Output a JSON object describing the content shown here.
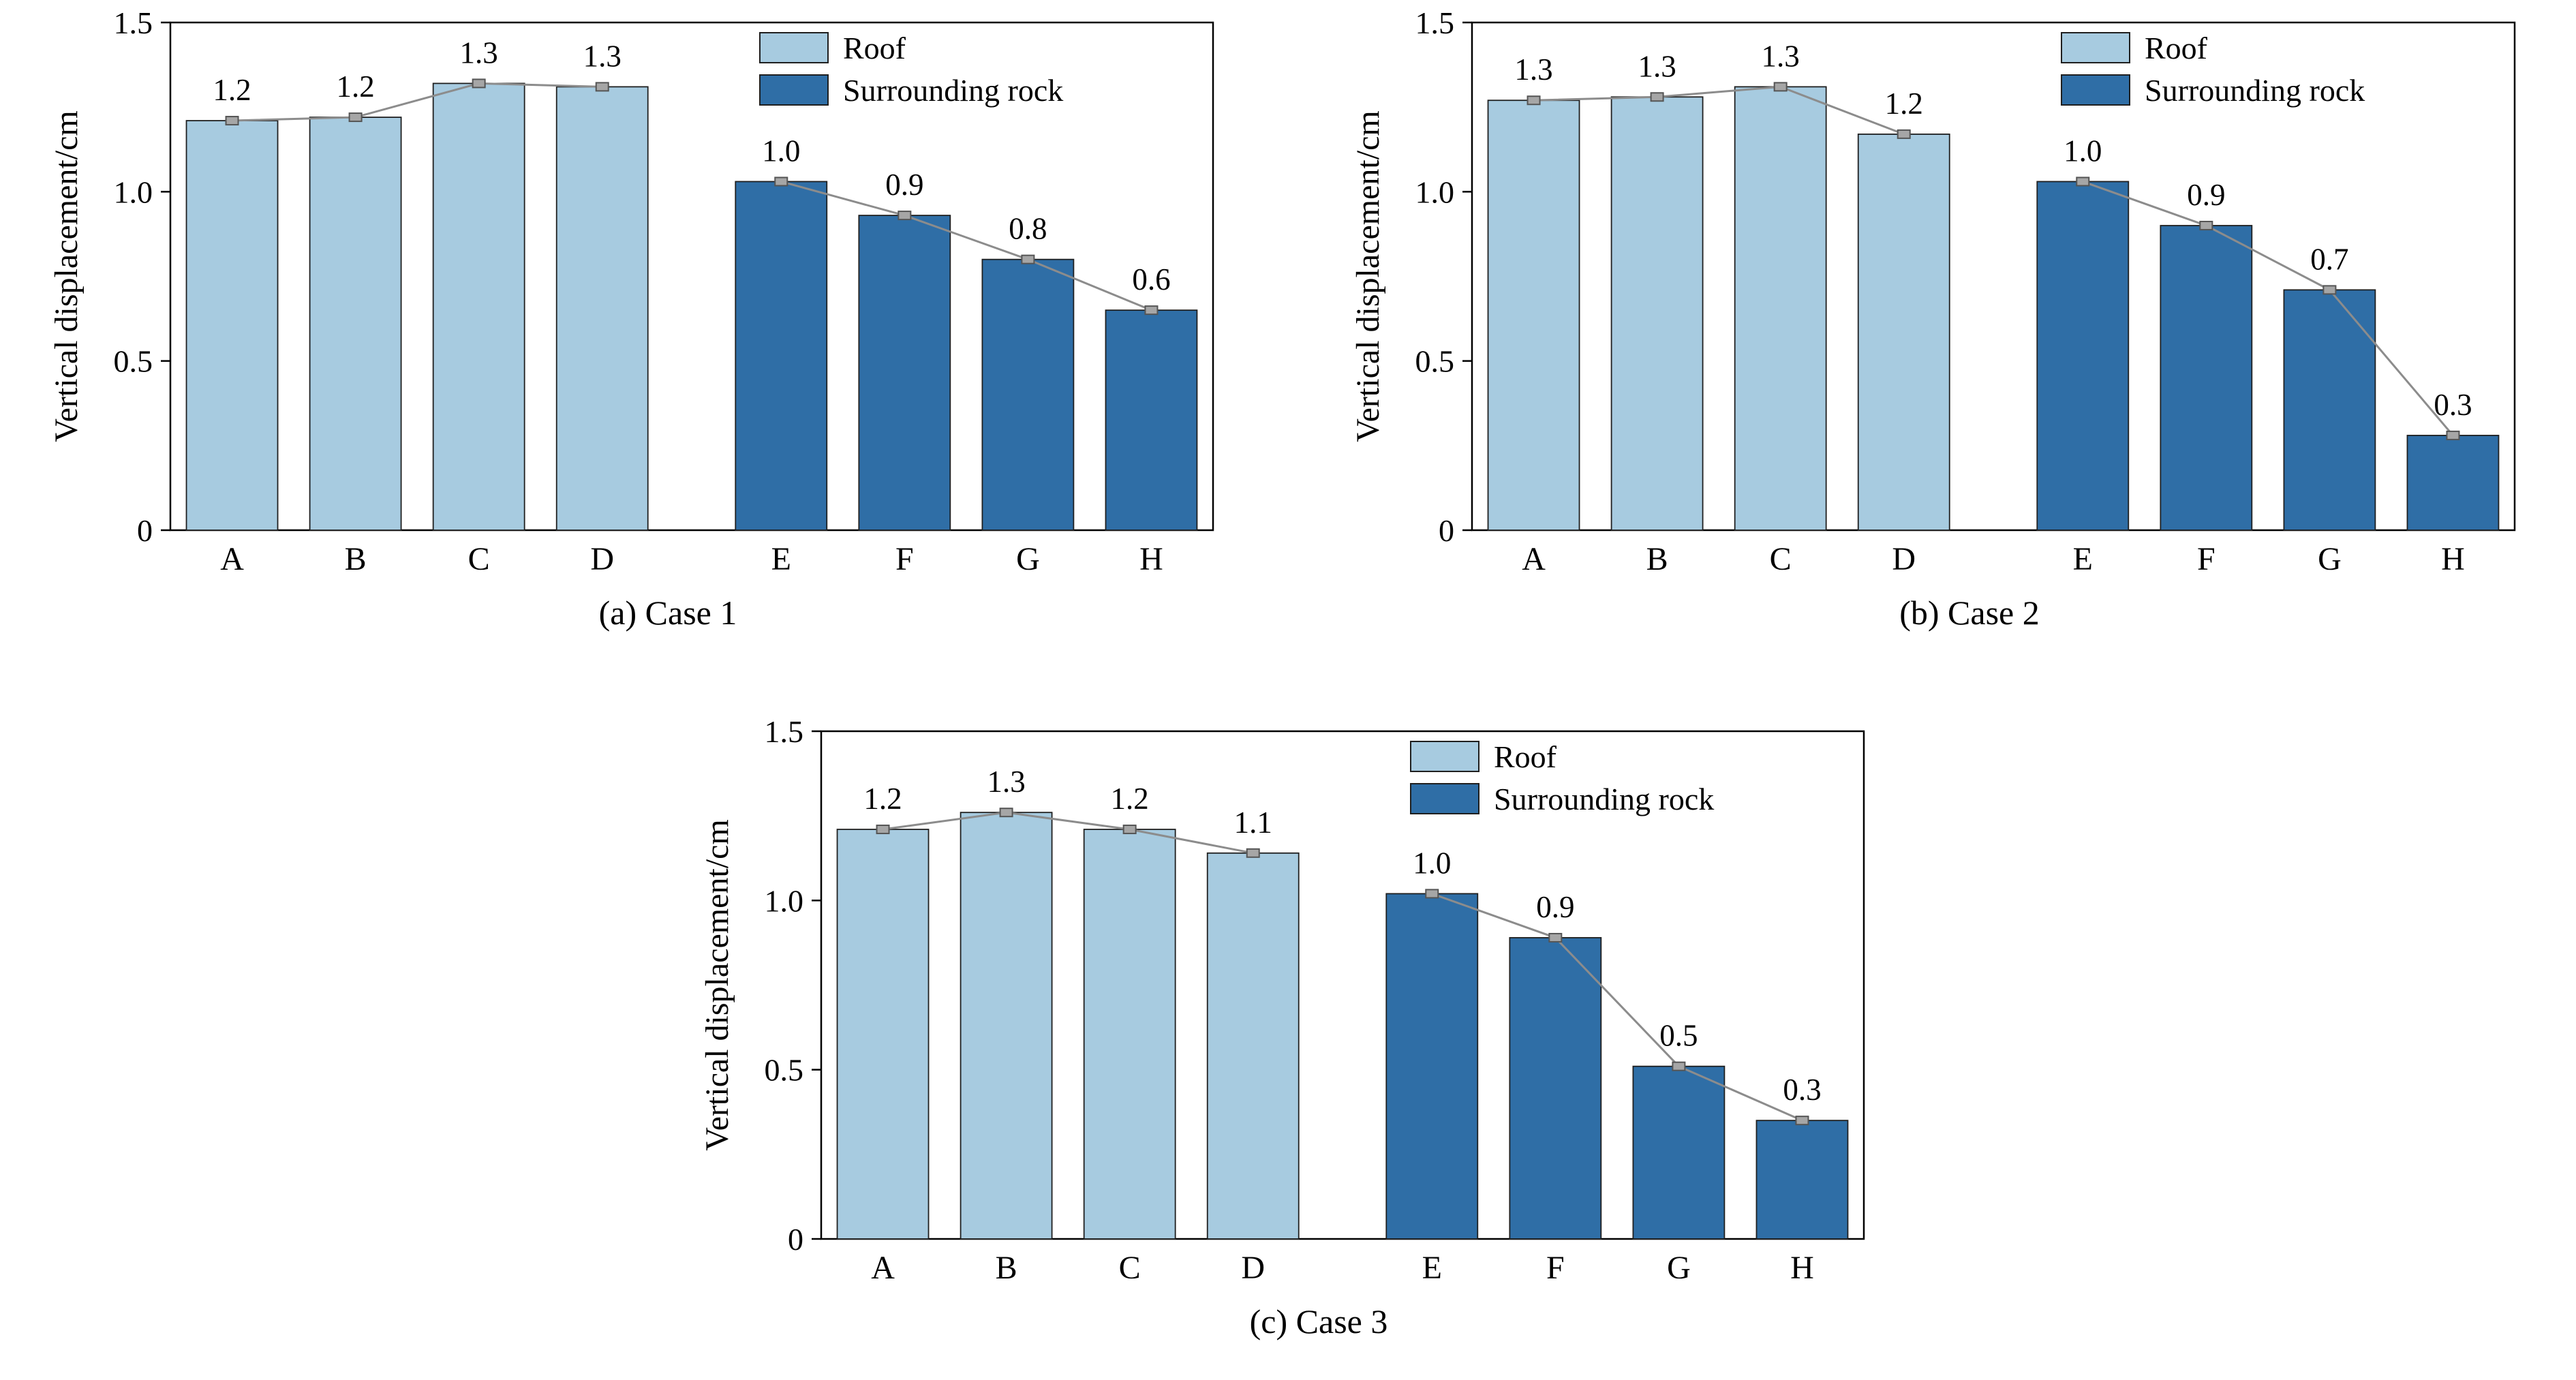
{
  "style": {
    "background": "#ffffff",
    "axis_color": "#000000",
    "line_color": "#8c8c8c",
    "marker_fill": "#a6a6a6",
    "marker_edge": "#555555",
    "bar_edge": "#1f1f1f",
    "roof_color": "#a7cbe0",
    "rock_color": "#2f6ea6"
  },
  "chart_data": [
    {
      "type": "bar",
      "title": "(a) Case 1",
      "ylabel": "Vertical displacement/cm",
      "ylim": [
        0,
        1.5
      ],
      "yticks": [
        {
          "value": 0,
          "label": "0"
        },
        {
          "value": 0.5,
          "label": "0.5"
        },
        {
          "value": 1.0,
          "label": "1.0"
        },
        {
          "value": 1.5,
          "label": "1.5"
        }
      ],
      "grid": false,
      "legend_position": "top-right-inside",
      "categories": [
        "A",
        "B",
        "C",
        "D",
        "E",
        "F",
        "G",
        "H"
      ],
      "series": [
        {
          "name": "Roof",
          "color": "#a7cbe0",
          "categories": [
            "A",
            "B",
            "C",
            "D"
          ],
          "values": [
            1.21,
            1.22,
            1.32,
            1.31
          ],
          "labels": [
            "1.2",
            "1.2",
            "1.3",
            "1.3"
          ]
        },
        {
          "name": "Surrounding rock",
          "color": "#2f6ea6",
          "categories": [
            "E",
            "F",
            "G",
            "H"
          ],
          "values": [
            1.03,
            0.93,
            0.8,
            0.65
          ],
          "labels": [
            "1.0",
            "0.9",
            "0.8",
            "0.6"
          ]
        }
      ]
    },
    {
      "type": "bar",
      "title": "(b) Case 2",
      "ylabel": "Vertical displacement/cm",
      "ylim": [
        0,
        1.5
      ],
      "yticks": [
        {
          "value": 0,
          "label": "0"
        },
        {
          "value": 0.5,
          "label": "0.5"
        },
        {
          "value": 1.0,
          "label": "1.0"
        },
        {
          "value": 1.5,
          "label": "1.5"
        }
      ],
      "grid": false,
      "legend_position": "top-right-inside",
      "categories": [
        "A",
        "B",
        "C",
        "D",
        "E",
        "F",
        "G",
        "H"
      ],
      "series": [
        {
          "name": "Roof",
          "color": "#a7cbe0",
          "categories": [
            "A",
            "B",
            "C",
            "D"
          ],
          "values": [
            1.27,
            1.28,
            1.31,
            1.17
          ],
          "labels": [
            "1.3",
            "1.3",
            "1.3",
            "1.2"
          ]
        },
        {
          "name": "Surrounding rock",
          "color": "#2f6ea6",
          "categories": [
            "E",
            "F",
            "G",
            "H"
          ],
          "values": [
            1.03,
            0.9,
            0.71,
            0.28
          ],
          "labels": [
            "1.0",
            "0.9",
            "0.7",
            "0.3"
          ]
        }
      ]
    },
    {
      "type": "bar",
      "title": "(c) Case 3",
      "ylabel": "Vertical displacement/cm",
      "ylim": [
        0,
        1.5
      ],
      "yticks": [
        {
          "value": 0,
          "label": "0"
        },
        {
          "value": 0.5,
          "label": "0.5"
        },
        {
          "value": 1.0,
          "label": "1.0"
        },
        {
          "value": 1.5,
          "label": "1.5"
        }
      ],
      "grid": false,
      "legend_position": "top-right-inside",
      "categories": [
        "A",
        "B",
        "C",
        "D",
        "E",
        "F",
        "G",
        "H"
      ],
      "series": [
        {
          "name": "Roof",
          "color": "#a7cbe0",
          "categories": [
            "A",
            "B",
            "C",
            "D"
          ],
          "values": [
            1.21,
            1.26,
            1.21,
            1.14
          ],
          "labels": [
            "1.2",
            "1.3",
            "1.2",
            "1.1"
          ]
        },
        {
          "name": "Surrounding rock",
          "color": "#2f6ea6",
          "categories": [
            "E",
            "F",
            "G",
            "H"
          ],
          "values": [
            1.02,
            0.89,
            0.51,
            0.35
          ],
          "labels": [
            "1.0",
            "0.9",
            "0.5",
            "0.3"
          ]
        }
      ]
    }
  ]
}
